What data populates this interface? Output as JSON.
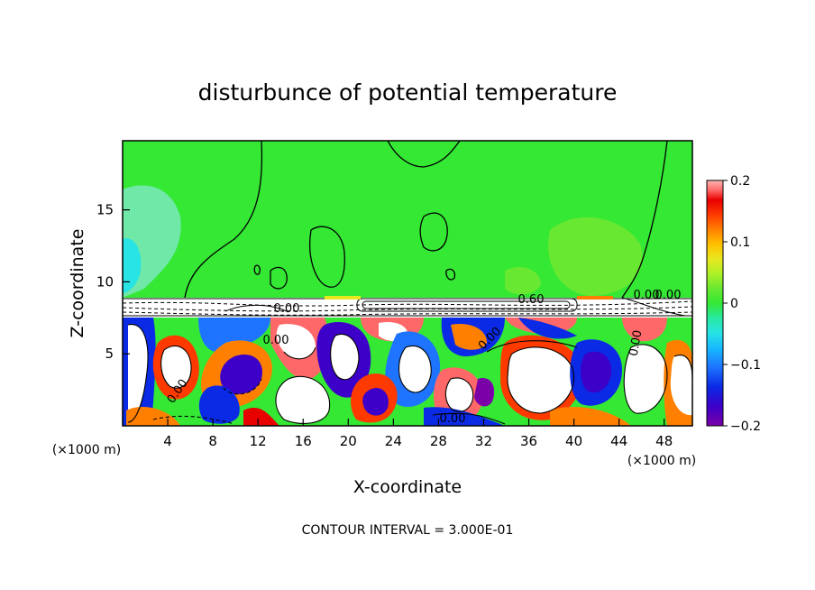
{
  "chart_data": {
    "type": "heatmap",
    "title": "disturbunce of potential temperature",
    "xlabel": "X-coordinate",
    "ylabel": "Z-coordinate",
    "x_unit_left": "(×1000 m)",
    "x_unit_right": "(×1000 m)",
    "xlim": [
      0,
      50.5
    ],
    "ylim": [
      0,
      19.8
    ],
    "x_ticks": [
      4,
      8,
      12,
      16,
      20,
      24,
      28,
      32,
      36,
      40,
      44,
      48
    ],
    "y_ticks": [
      5,
      10,
      15
    ],
    "colorbar": {
      "range": [
        -0.2,
        0.2
      ],
      "tick_labels": [
        "0.2",
        "0.1",
        "0",
        "−0.1",
        "−0.2"
      ],
      "tick_values": [
        0.2,
        0.1,
        0,
        -0.1,
        -0.2
      ],
      "colors": [
        "#7a00a8",
        "#3c00c8",
        "#0a2ae6",
        "#1e74ff",
        "#16b4ff",
        "#28e4e4",
        "#28e8a0",
        "#34e834",
        "#68e830",
        "#aef028",
        "#e8e820",
        "#ffc000",
        "#ff8000",
        "#ff3a00",
        "#e80000",
        "#ff6868",
        "#ffb4b4"
      ]
    },
    "contour_labels": [
      "0.60",
      "0.00",
      "0.00",
      "0.00",
      "0.00",
      "0.00",
      "0.00",
      "0.00",
      "0.00"
    ],
    "upper_layer_value": 0.0,
    "inversion_height": 9,
    "contour_interval": "CONTOUR INTERVAL = 3.000E-01"
  }
}
